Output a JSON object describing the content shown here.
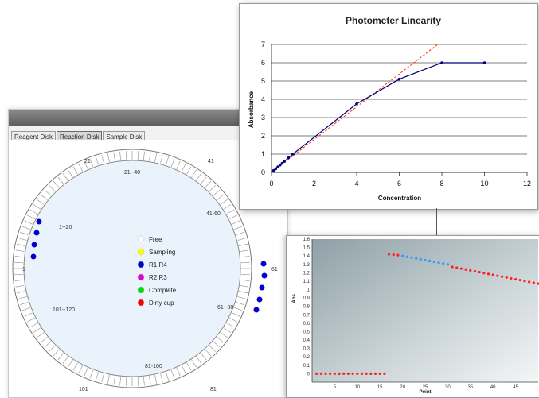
{
  "disk_panel": {
    "tabs": [
      "Reagent Disk",
      "Reaction Disk",
      "Sample Disk"
    ],
    "active_tab": "Reaction Disk",
    "position_labels": [
      "21",
      "41",
      "1",
      "61",
      "101",
      "81"
    ],
    "range_labels": [
      "21--40",
      "41-60",
      "1--20",
      "61--80",
      "101--120",
      "81-100"
    ],
    "legend": [
      {
        "label": "Free",
        "color": "#ffffff"
      },
      {
        "label": "Sampling",
        "color": "#ffff00"
      },
      {
        "label": "R1,R4",
        "color": "#0000cc"
      },
      {
        "label": "R2,R3",
        "color": "#e000e0"
      },
      {
        "label": "Complete",
        "color": "#00dd00"
      },
      {
        "label": "Dirty cup",
        "color": "#ff0000"
      }
    ]
  },
  "chart_data": [
    {
      "type": "line",
      "title": "Photometer Linearity",
      "xlabel": "Concentration",
      "ylabel": "Absorbance",
      "xlim": [
        0,
        12
      ],
      "ylim": [
        0,
        7
      ],
      "xticks": [
        "0",
        "2",
        "4",
        "6",
        "8",
        "10",
        "12"
      ],
      "yticks": [
        "0",
        "1",
        "2",
        "3",
        "4",
        "5",
        "6",
        "7"
      ],
      "grid": true,
      "series": [
        {
          "color": "#000080",
          "x": [
            0.1,
            0.2,
            0.3,
            0.4,
            0.5,
            0.6,
            0.8,
            1,
            4,
            6,
            8,
            10
          ],
          "y": [
            0.1,
            0.2,
            0.3,
            0.4,
            0.5,
            0.6,
            0.8,
            1,
            3.75,
            5.1,
            6,
            6
          ]
        },
        {
          "style": "dashed",
          "color": "#ff3300",
          "x": [
            0,
            7.8
          ],
          "y": [
            0,
            7
          ]
        }
      ]
    },
    {
      "type": "scatter",
      "xlabel": "Point",
      "ylabel": "Abs.",
      "xlim": [
        0,
        50
      ],
      "ylim": [
        -0.1,
        1.6
      ],
      "xticks": [
        "5",
        "10",
        "15",
        "20",
        "25",
        "30",
        "35",
        "40",
        "45"
      ],
      "yticks": [
        "0",
        "0.1",
        "0.2",
        "0.3",
        "0.4",
        "0.5",
        "0.6",
        "0.7",
        "0.8",
        "0.9",
        "1",
        "1.1",
        "1.2",
        "1.3",
        "1.4",
        "1.5",
        "1.6"
      ],
      "series": [
        {
          "color": "#ff2020",
          "x_range": [
            1,
            16
          ],
          "y_start": 0.0,
          "y_end": 0.0
        },
        {
          "color": "#ff2020",
          "x_range": [
            17,
            19
          ],
          "y_start": 1.42,
          "y_end": 1.41
        },
        {
          "color": "#3399ff",
          "x_range": [
            20,
            30
          ],
          "y_start": 1.4,
          "y_end": 1.3
        },
        {
          "color": "#ff2020",
          "x_range": [
            31,
            50
          ],
          "y_start": 1.27,
          "y_end": 1.07
        }
      ]
    }
  ]
}
